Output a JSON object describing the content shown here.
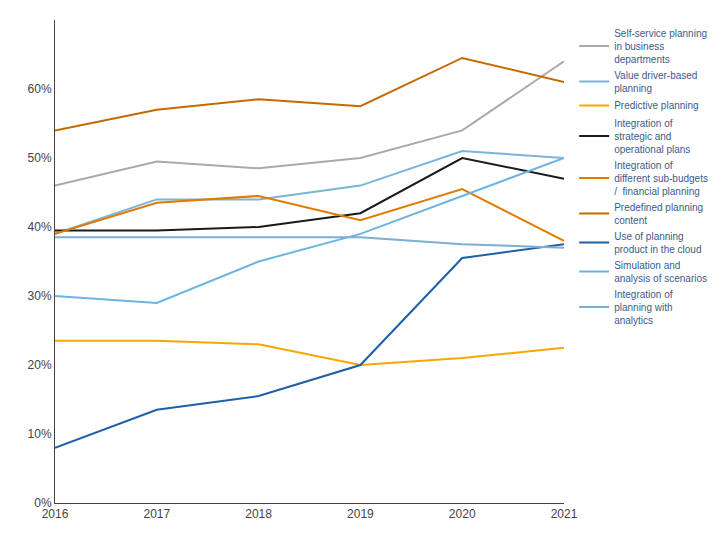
{
  "chart_data": {
    "type": "line",
    "x": [
      2016,
      2017,
      2018,
      2019,
      2020,
      2021
    ],
    "series": [
      {
        "name": "Self-service planning\nin business\ndepartments",
        "color": "#AAAAAA",
        "values": [
          0.46,
          0.495,
          0.485,
          0.5,
          0.54,
          0.64
        ]
      },
      {
        "name": "Value driver-based\nplanning",
        "color": "#7AB4D8",
        "values": [
          0.39,
          0.44,
          0.44,
          0.46,
          0.51,
          0.5
        ]
      },
      {
        "name": "Predictive planning",
        "color": "#F5A800",
        "values": [
          0.235,
          0.235,
          0.23,
          0.2,
          0.21,
          0.225
        ]
      },
      {
        "name": "Integration of\nstrategic and\noperational plans",
        "color": "#1a1a1a",
        "values": [
          0.395,
          0.395,
          0.4,
          0.42,
          0.5,
          0.47
        ]
      },
      {
        "name": "Integration of\ndifferent sub-budgets\n/  financial planning",
        "color": "#E07B00",
        "values": [
          0.39,
          0.435,
          0.445,
          0.41,
          0.455,
          0.38
        ]
      },
      {
        "name": "Predefined planning\ncontent",
        "color": "#C46A00",
        "values": [
          0.54,
          0.57,
          0.585,
          0.575,
          0.645,
          0.61
        ]
      },
      {
        "name": "Use of planning\nproduct in the cloud",
        "color": "#1F5FA6",
        "values": [
          0.08,
          0.135,
          0.155,
          0.2,
          0.355,
          0.375
        ]
      },
      {
        "name": "Simulation and\nanalysis of scenarios",
        "color": "#6BB5E0",
        "values": [
          0.3,
          0.29,
          0.35,
          0.39,
          0.445,
          0.5
        ]
      },
      {
        "name": "Integration of\nplanning with\nanalytics",
        "color": "#7BAFD4",
        "values": [
          0.385,
          0.385,
          0.385,
          0.385,
          0.375,
          0.37
        ]
      }
    ],
    "xlim": [
      2016,
      2021
    ],
    "xticks": [
      2016,
      2017,
      2018,
      2019,
      2020,
      2021
    ],
    "ylim": [
      0,
      0.7
    ],
    "yticks": [
      {
        "value": 0.0,
        "label": "0%"
      },
      {
        "value": 0.1,
        "label": "10%"
      },
      {
        "value": 0.2,
        "label": "20%"
      },
      {
        "value": 0.3,
        "label": "30%"
      },
      {
        "value": 0.4,
        "label": "40%"
      },
      {
        "value": 0.5,
        "label": "50%"
      },
      {
        "value": 0.6,
        "label": "60%"
      }
    ],
    "grid": false,
    "legend": "right"
  }
}
